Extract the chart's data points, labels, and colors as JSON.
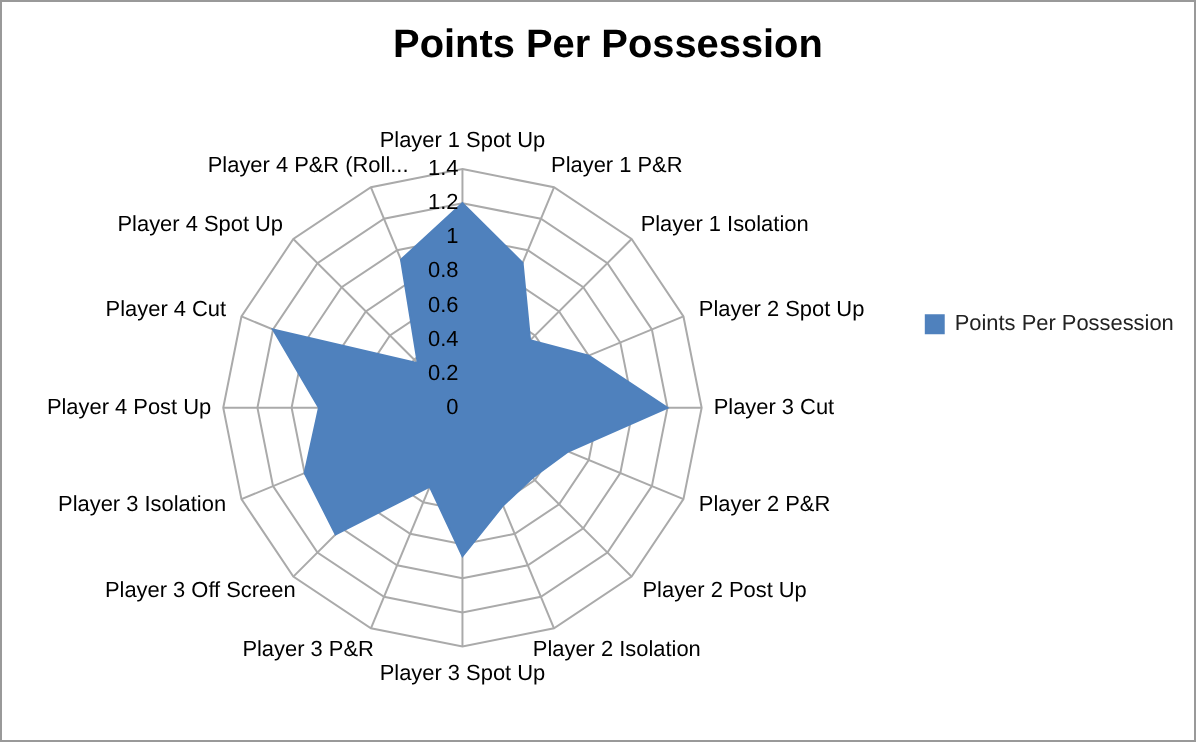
{
  "chart_data": {
    "type": "radar",
    "title": "Points Per Possession",
    "categories": [
      "Player 1 Spot Up",
      "Player 1 P&R",
      "Player 1 Isolation",
      "Player 2 Spot Up",
      "Player 3 Cut",
      "Player 2 P&R",
      "Player 2 Post Up",
      "Player 2 Isolation",
      "Player 3 Spot Up",
      "Player 3 P&R",
      "Player 3 Off Screen",
      "Player 3 Isolation",
      "Player 4 Post Up",
      "Player 4 Cut",
      "Player 4 Spot Up",
      "Player 4 P&R (Roll..."
    ],
    "series": [
      {
        "name": "Points Per Possession",
        "color": "#4f81bd",
        "values": [
          1.2,
          0.92,
          0.56,
          0.8,
          1.2,
          0.67,
          0.58,
          0.62,
          0.87,
          0.5,
          1.05,
          1.0,
          0.84,
          1.2,
          0.37,
          0.94
        ]
      }
    ],
    "ylim": [
      0,
      1.4
    ],
    "yticks": [
      0,
      0.2,
      0.4,
      0.6,
      0.8,
      1,
      1.2,
      1.4
    ],
    "grid": true,
    "legend": "right"
  }
}
